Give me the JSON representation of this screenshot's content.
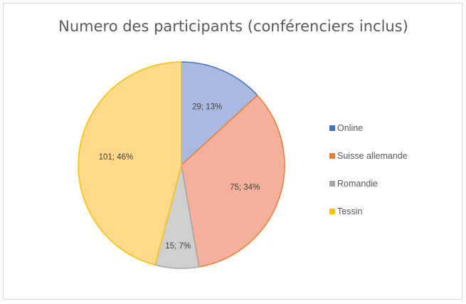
{
  "chart_data": {
    "type": "pie",
    "title": "Numero des participants (conférenciers inclus)",
    "legend_position": "right",
    "slices": [
      {
        "name": "Online",
        "value": 29,
        "percent_label": "29; 13%",
        "fill": "#a9b9e2",
        "stroke": "#4472c4",
        "legend_color": "#4472c4"
      },
      {
        "name": "Suisse allemande",
        "value": 75,
        "percent_label": "75; 34%",
        "fill": "#f4b09a",
        "stroke": "#ed7d31",
        "legend_color": "#ed7d31"
      },
      {
        "name": "Romandie",
        "value": 15,
        "percent_label": "15; 7%",
        "fill": "#cfcfcf",
        "stroke": "#a5a5a5",
        "legend_color": "#a5a5a5"
      },
      {
        "name": "Tessin",
        "value": 101,
        "percent_label": "101; 46%",
        "fill": "#ffd98a",
        "stroke": "#ffc000",
        "legend_color": "#ffc000"
      }
    ]
  }
}
